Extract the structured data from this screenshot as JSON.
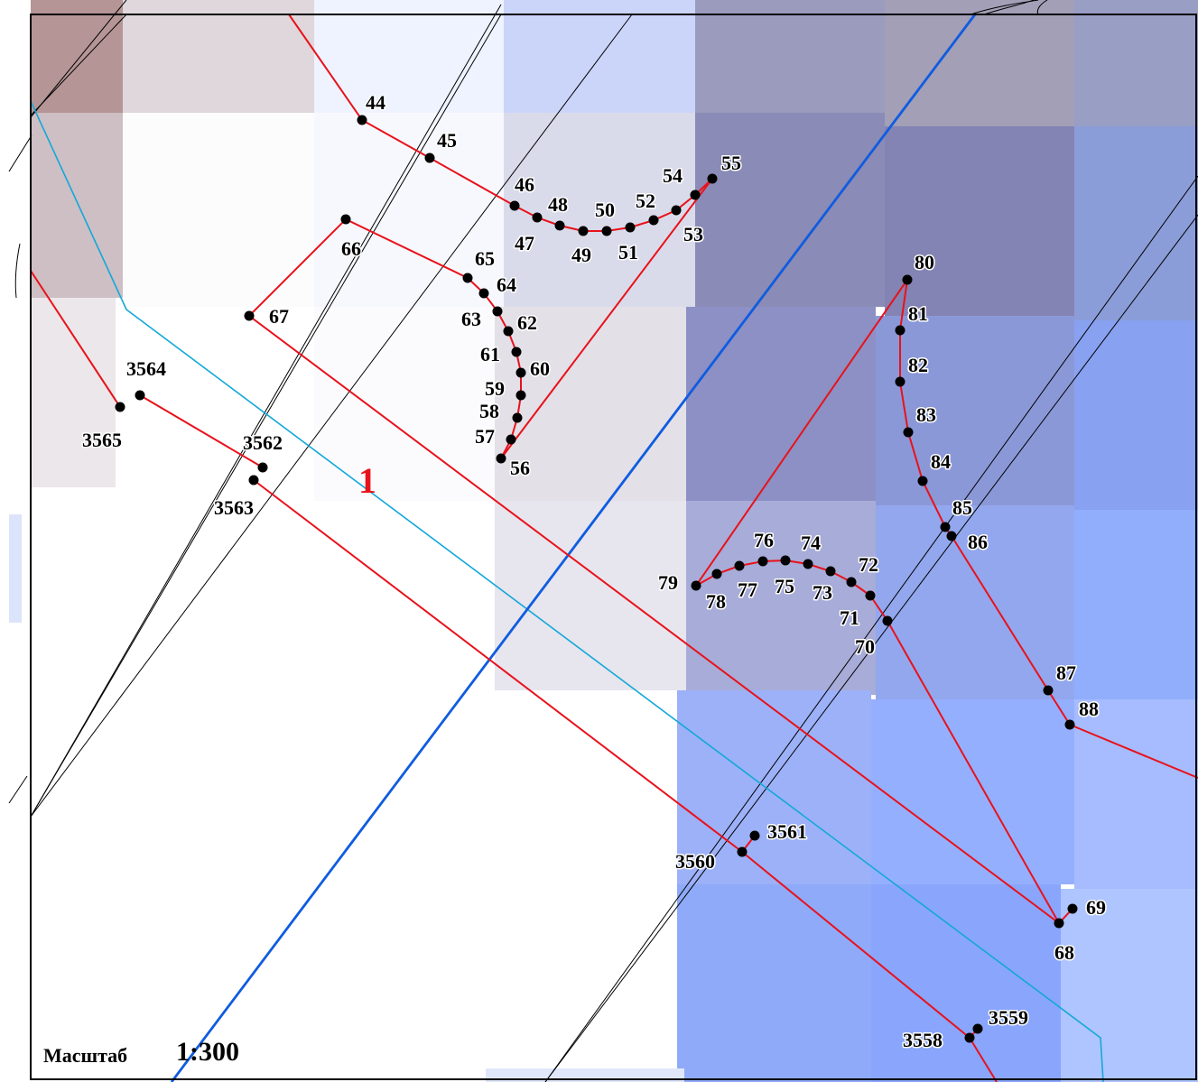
{
  "map": {
    "scale_label": "Масштаб",
    "scale_value": "1:300",
    "zone_label": "1",
    "colors": {
      "boundary": "#e8121b",
      "point": "#000000",
      "grid_line": "#000000",
      "road_line": "#0f5ce0",
      "water_line": "#12a8d8",
      "zone_label": "#e8121b"
    },
    "point_labels": [
      "44",
      "45",
      "46",
      "47",
      "48",
      "49",
      "50",
      "51",
      "52",
      "53",
      "54",
      "55",
      "56",
      "57",
      "58",
      "59",
      "60",
      "61",
      "62",
      "63",
      "64",
      "65",
      "66",
      "67",
      "68",
      "69",
      "70",
      "71",
      "72",
      "73",
      "74",
      "75",
      "76",
      "77",
      "78",
      "79",
      "80",
      "81",
      "82",
      "83",
      "84",
      "85",
      "86",
      "87",
      "88",
      "3558",
      "3559",
      "3560",
      "3561",
      "3562",
      "3563",
      "3564",
      "3565"
    ]
  }
}
